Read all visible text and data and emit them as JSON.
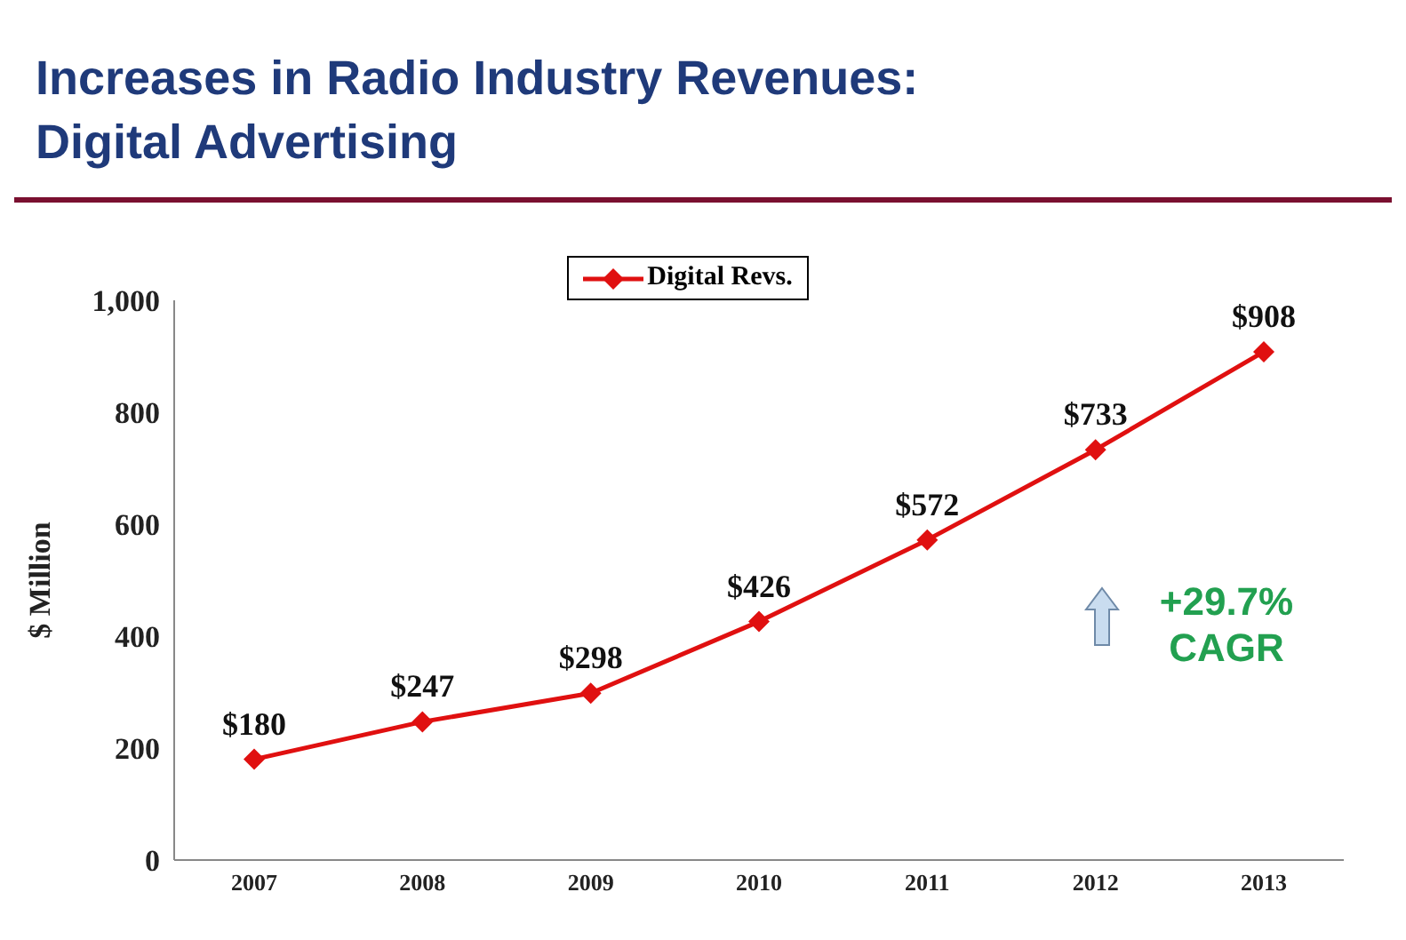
{
  "chart_data": {
    "type": "line",
    "title": "Increases in Radio Industry Revenues: Digital Advertising",
    "ylabel": "$ Million",
    "categories": [
      "2007",
      "2008",
      "2009",
      "2010",
      "2011",
      "2012",
      "2013"
    ],
    "series": [
      {
        "name": "Digital Revs.",
        "color": "#e01010",
        "values": [
          180,
          247,
          298,
          426,
          572,
          733,
          908
        ],
        "value_labels": [
          "$180",
          "$247",
          "$298",
          "$426",
          "$572",
          "$733",
          "$908"
        ]
      }
    ],
    "ylim": [
      0,
      1000
    ],
    "yticks": [
      0,
      200,
      400,
      600,
      800,
      {
        "value": 1000,
        "label": "1,000"
      }
    ],
    "grid": false,
    "legend": "top",
    "marker": "diamond",
    "line_style": "solid",
    "annotations": [
      "+29.7% CAGR"
    ]
  }
}
